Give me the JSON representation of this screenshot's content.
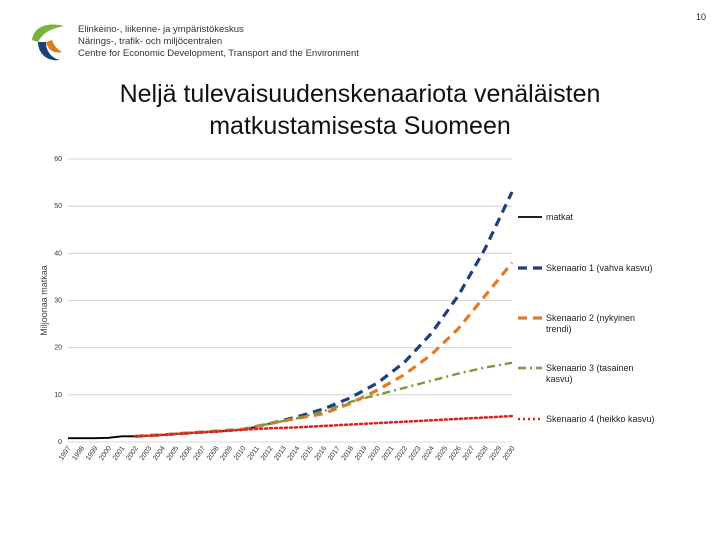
{
  "page": {
    "number": "10"
  },
  "header": {
    "org_lines": [
      "Elinkeino-, liikenne- ja ympäristökeskus",
      "Närings-, trafik- och miljöcentralen",
      "Centre for Economic Development, Transport and the Environment"
    ]
  },
  "title": {
    "line1": "Neljä tulevaisuudenskenaariota venäläisten",
    "line2": "matkustamisesta Suomeen"
  },
  "colors": {
    "logo_green": "#7ab23c",
    "logo_blue": "#1d3f7a",
    "logo_orange": "#e07b1a",
    "grid": "#cccccc"
  },
  "chart_data": {
    "type": "line",
    "ylabel": "Miljoonaa matkaa",
    "xlabel": "",
    "ylim": [
      0,
      60
    ],
    "yticks": [
      0,
      10,
      20,
      30,
      40,
      50,
      60
    ],
    "grid": true,
    "legend_position": "right",
    "x": [
      "1997",
      "1998",
      "1999",
      "2000",
      "2001",
      "2002",
      "2003",
      "2004",
      "2005",
      "2006",
      "2007",
      "2008",
      "2009",
      "2010",
      "2011",
      "2012",
      "2013",
      "2014",
      "2015",
      "2016",
      "2017",
      "2018",
      "2019",
      "2020",
      "2021",
      "2022",
      "2023",
      "2024",
      "2025",
      "2026",
      "2027",
      "2028",
      "2029",
      "2030"
    ],
    "series": [
      {
        "name": "matkat",
        "color": "#000000",
        "style": "solid",
        "x": [
          1997,
          1998,
          1999,
          2000,
          2001,
          2002,
          2003,
          2004,
          2005,
          2006,
          2007,
          2008,
          2009,
          2010,
          2011,
          2012
        ],
        "values": [
          0.8,
          0.8,
          0.8,
          0.9,
          1.2,
          1.2,
          1.3,
          1.5,
          1.7,
          1.9,
          2.1,
          2.3,
          2.4,
          2.7,
          3.2,
          3.9
        ]
      },
      {
        "name": "Skenaario 1 (vahva kasvu)",
        "color": "#1f3f7f",
        "style": "dash",
        "x": [
          2002,
          2004,
          2006,
          2008,
          2010,
          2012,
          2014,
          2016,
          2018,
          2020,
          2022,
          2024,
          2026,
          2028,
          2030
        ],
        "values": [
          1.2,
          1.5,
          1.9,
          2.3,
          2.7,
          3.9,
          5.3,
          7.0,
          9.4,
          12.5,
          16.9,
          23.0,
          31.0,
          41.0,
          53.0
        ]
      },
      {
        "name": "Skenaario 2 (nykyinen trendi)",
        "color": "#e07b2a",
        "style": "dash",
        "x": [
          2002,
          2004,
          2006,
          2008,
          2010,
          2012,
          2014,
          2016,
          2018,
          2020,
          2022,
          2024,
          2026,
          2028,
          2030
        ],
        "values": [
          1.2,
          1.5,
          1.9,
          2.3,
          2.7,
          3.9,
          5.0,
          6.0,
          8.2,
          11.0,
          14.3,
          18.5,
          24.0,
          31.0,
          38.0
        ]
      },
      {
        "name": "Skenaario 3 (tasainen kasvu)",
        "color": "#7a9a3c",
        "style": "dashdot",
        "x": [
          2002,
          2004,
          2006,
          2008,
          2010,
          2012,
          2014,
          2016,
          2018,
          2020,
          2022,
          2024,
          2026,
          2028,
          2030
        ],
        "values": [
          1.2,
          1.5,
          1.9,
          2.3,
          2.7,
          3.9,
          5.0,
          6.5,
          8.5,
          10.0,
          11.5,
          13.0,
          14.5,
          15.8,
          16.8
        ]
      },
      {
        "name": "Skenaario 4 (heikko kasvu)",
        "color": "#dd2222",
        "style": "dot",
        "x": [
          2002,
          2004,
          2006,
          2008,
          2010,
          2012,
          2014,
          2016,
          2018,
          2020,
          2022,
          2024,
          2026,
          2028,
          2030
        ],
        "values": [
          1.2,
          1.5,
          1.9,
          2.2,
          2.6,
          2.9,
          3.1,
          3.4,
          3.7,
          4.0,
          4.3,
          4.6,
          4.9,
          5.2,
          5.5
        ]
      }
    ]
  }
}
